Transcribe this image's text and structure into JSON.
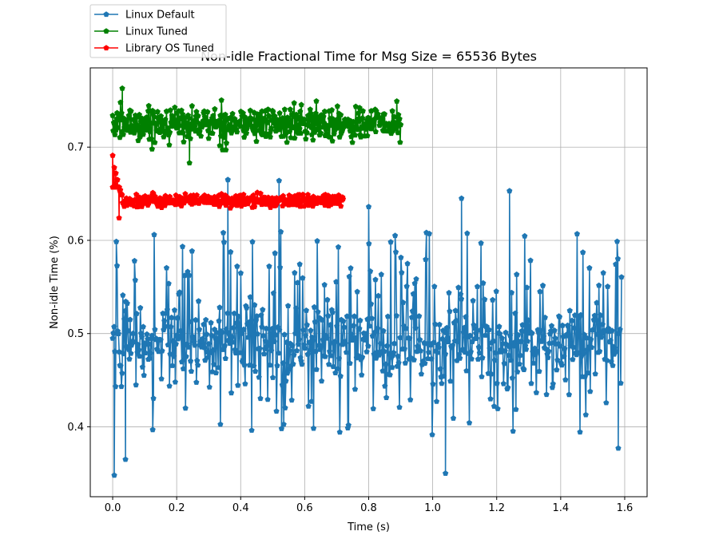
{
  "chart_data": {
    "type": "line",
    "title": "Non-idle Fractional Time for Msg Size = 65536 Bytes",
    "xlabel": "Time (s)",
    "ylabel": "Non-idle Time (%)",
    "xlim": [
      -0.07,
      1.67
    ],
    "ylim": [
      0.325,
      0.785
    ],
    "xticks": [
      0.0,
      0.2,
      0.4,
      0.6,
      0.8,
      1.0,
      1.2,
      1.4,
      1.6
    ],
    "xtick_labels": [
      "0.0",
      "0.2",
      "0.4",
      "0.6",
      "0.8",
      "1.0",
      "1.2",
      "1.4",
      "1.6"
    ],
    "yticks": [
      0.4,
      0.5,
      0.6,
      0.7
    ],
    "ytick_labels": [
      "0.4",
      "0.5",
      "0.6",
      "0.7"
    ],
    "grid": true,
    "legend_position": "upper-left (above plot)",
    "marker": "pentagon",
    "series": [
      {
        "name": "Linux Default",
        "color": "#1f77b4",
        "x_start": 0.0,
        "x_end": 1.59,
        "typical_range": [
          0.45,
          0.53
        ],
        "min": 0.348,
        "max": 0.665,
        "highlights": [
          {
            "x": 0.005,
            "y": 0.348
          },
          {
            "x": 0.04,
            "y": 0.365
          },
          {
            "x": 0.36,
            "y": 0.665
          },
          {
            "x": 0.52,
            "y": 0.664
          },
          {
            "x": 0.8,
            "y": 0.636
          },
          {
            "x": 1.04,
            "y": 0.35
          },
          {
            "x": 1.09,
            "y": 0.645
          },
          {
            "x": 1.24,
            "y": 0.653
          },
          {
            "x": 1.58,
            "y": 0.377
          }
        ]
      },
      {
        "name": "Linux Tuned",
        "color": "#008000",
        "x_start": 0.0,
        "x_end": 0.9,
        "typical_range": [
          0.705,
          0.745
        ],
        "min": 0.683,
        "max": 0.763,
        "highlights": [
          {
            "x": 0.03,
            "y": 0.763
          },
          {
            "x": 0.24,
            "y": 0.683
          }
        ]
      },
      {
        "name": "Library OS Tuned",
        "color": "#ff0000",
        "x_start": 0.0,
        "x_end": 0.72,
        "typical_range": [
          0.633,
          0.652
        ],
        "min": 0.624,
        "max": 0.691,
        "highlights": [
          {
            "x": 0.0,
            "y": 0.691
          },
          {
            "x": 0.005,
            "y": 0.678
          },
          {
            "x": 0.01,
            "y": 0.672
          },
          {
            "x": 0.015,
            "y": 0.665
          },
          {
            "x": 0.02,
            "y": 0.624
          }
        ]
      }
    ]
  }
}
